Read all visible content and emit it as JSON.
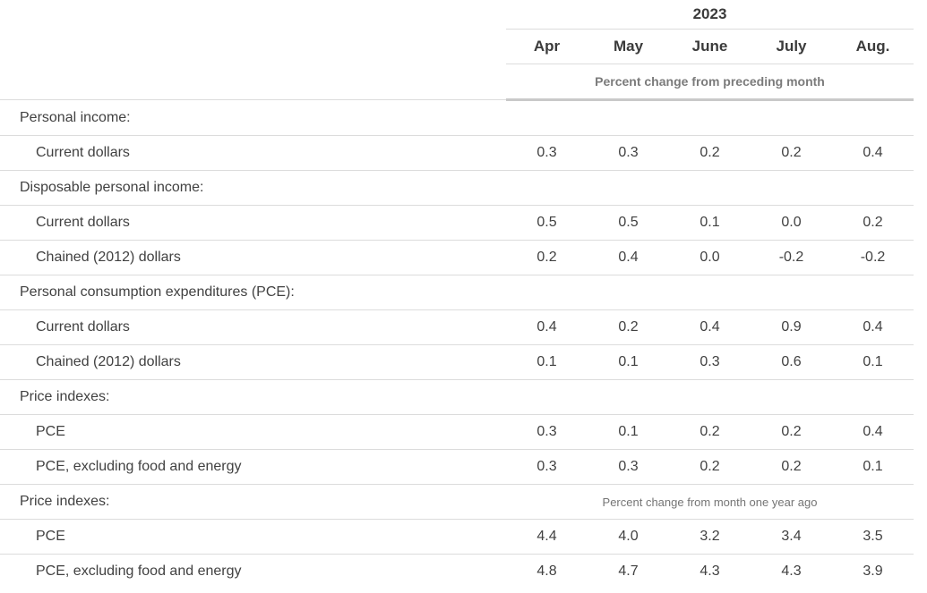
{
  "chart_data": {
    "type": "table",
    "year_header": "2023",
    "columns": [
      "Apr",
      "May",
      "June",
      "July",
      "Aug."
    ],
    "unit_note_top": "Percent change from preceding month",
    "unit_note_bottom": "Percent change from month one year ago",
    "rows": [
      {
        "label": "Personal income:",
        "kind": "section"
      },
      {
        "label": "Current dollars",
        "kind": "data",
        "values": [
          "0.3",
          "0.3",
          "0.2",
          "0.2",
          "0.4"
        ]
      },
      {
        "label": "Disposable personal income:",
        "kind": "section"
      },
      {
        "label": "Current dollars",
        "kind": "data",
        "values": [
          "0.5",
          "0.5",
          "0.1",
          "0.0",
          "0.2"
        ]
      },
      {
        "label": "Chained (2012) dollars",
        "kind": "data",
        "values": [
          "0.2",
          "0.4",
          "0.0",
          "-0.2",
          "-0.2"
        ]
      },
      {
        "label": "Personal consumption expenditures (PCE):",
        "kind": "section"
      },
      {
        "label": "Current dollars",
        "kind": "data",
        "values": [
          "0.4",
          "0.2",
          "0.4",
          "0.9",
          "0.4"
        ]
      },
      {
        "label": "Chained (2012) dollars",
        "kind": "data",
        "values": [
          "0.1",
          "0.1",
          "0.3",
          "0.6",
          "0.1"
        ]
      },
      {
        "label": "Price indexes:",
        "kind": "section"
      },
      {
        "label": "PCE",
        "kind": "data",
        "values": [
          "0.3",
          "0.1",
          "0.2",
          "0.2",
          "0.4"
        ]
      },
      {
        "label": "PCE, excluding food and energy",
        "kind": "data",
        "values": [
          "0.3",
          "0.3",
          "0.2",
          "0.2",
          "0.1"
        ]
      },
      {
        "label": "Price indexes:",
        "kind": "section-note",
        "note": "Percent change from month one year ago"
      },
      {
        "label": "PCE",
        "kind": "data",
        "values": [
          "4.4",
          "4.0",
          "3.2",
          "3.4",
          "3.5"
        ]
      },
      {
        "label": "PCE, excluding food and energy",
        "kind": "data",
        "values": [
          "4.8",
          "4.7",
          "4.3",
          "4.3",
          "3.9"
        ]
      }
    ]
  },
  "colors": {
    "text": "#414141",
    "header_text": "#3b3b3b",
    "muted_text": "#757575",
    "thin_border": "#dcdcdc",
    "thick_border": "#c9c9c9",
    "background": "#ffffff"
  }
}
